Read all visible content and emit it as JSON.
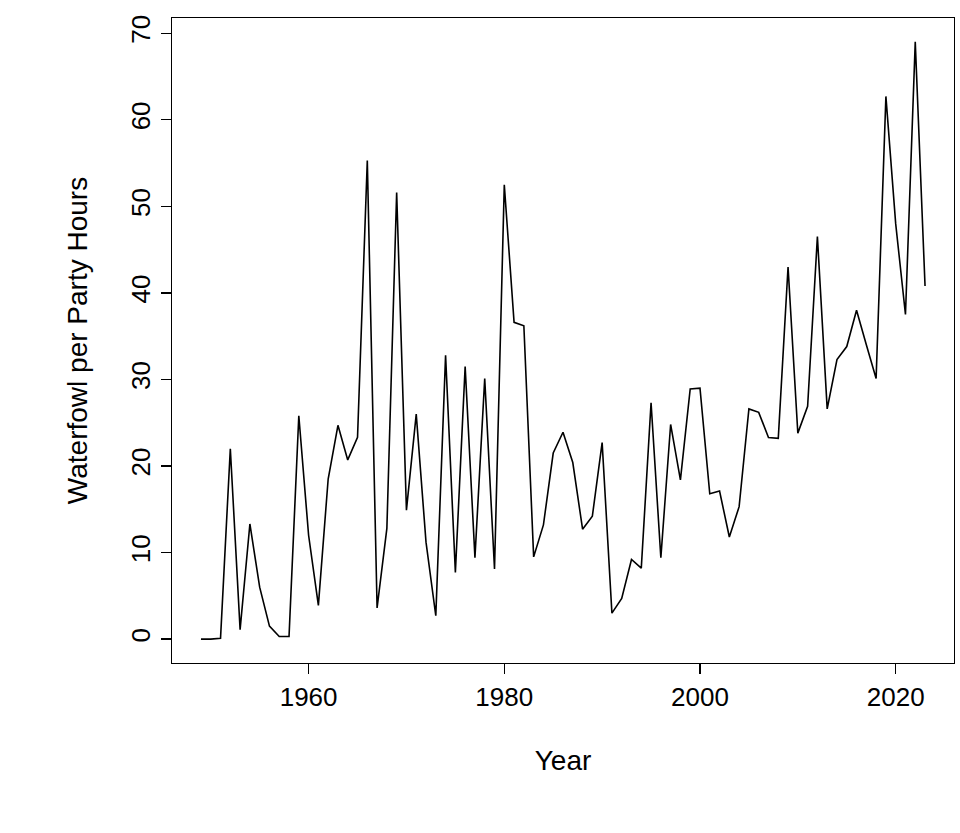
{
  "chart_data": {
    "type": "line",
    "x_label": "Year",
    "y_label": "Waterfowl per Party Hours",
    "x": [
      1949,
      1950,
      1951,
      1952,
      1953,
      1954,
      1955,
      1956,
      1957,
      1958,
      1959,
      1960,
      1961,
      1962,
      1963,
      1964,
      1965,
      1966,
      1967,
      1968,
      1969,
      1970,
      1971,
      1972,
      1973,
      1974,
      1975,
      1976,
      1977,
      1978,
      1979,
      1980,
      1981,
      1982,
      1983,
      1984,
      1985,
      1986,
      1987,
      1988,
      1989,
      1990,
      1991,
      1992,
      1993,
      1994,
      1995,
      1996,
      1997,
      1998,
      1999,
      2000,
      2001,
      2002,
      2003,
      2004,
      2005,
      2006,
      2007,
      2008,
      2009,
      2010,
      2011,
      2012,
      2013,
      2014,
      2015,
      2016,
      2017,
      2018,
      2019,
      2020,
      2021,
      2022,
      2023
    ],
    "values": [
      0,
      0,
      0.1,
      22,
      1.1,
      13.3,
      6,
      1.5,
      0.3,
      0.3,
      25.8,
      12,
      3.9,
      18.5,
      24.7,
      20.7,
      23.3,
      55.3,
      3.6,
      12.8,
      51.6,
      14.9,
      26,
      11.2,
      2.7,
      32.8,
      7.7,
      31.5,
      9.4,
      30.1,
      8.1,
      52.5,
      36.6,
      36.2,
      9.5,
      13.2,
      21.5,
      23.9,
      20.4,
      12.7,
      14.2,
      22.7,
      3,
      4.7,
      9.2,
      8.2,
      27.3,
      9.4,
      24.8,
      18.4,
      28.9,
      29,
      16.8,
      17.1,
      11.8,
      15.3,
      26.6,
      26.2,
      23.3,
      23.2,
      43,
      23.8,
      26.9,
      46.5,
      26.6,
      32.3,
      33.8,
      38,
      34,
      30.1,
      62.7,
      48,
      37.5,
      69,
      40.8
    ],
    "color": "#000000",
    "xlim": [
      1946.04,
      2025.96
    ],
    "xticks": [
      1960,
      1980,
      2000,
      2020
    ],
    "ylim": [
      -2.76,
      71.76
    ],
    "yticks": [
      0,
      10,
      20,
      30,
      40,
      50,
      60,
      70
    ],
    "grid": false
  }
}
